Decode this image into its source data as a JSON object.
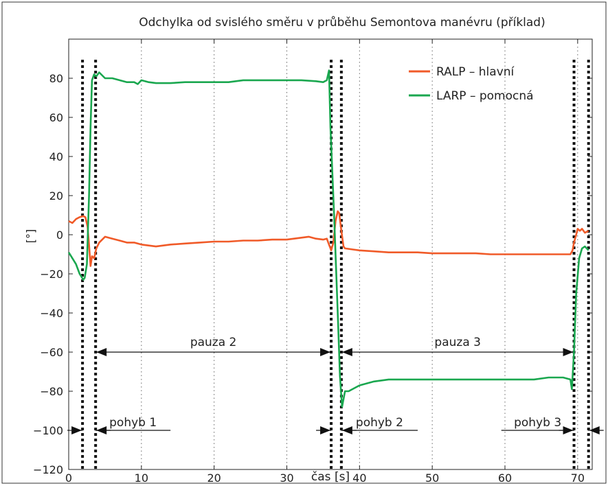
{
  "chart_data": {
    "type": "line",
    "title": "Odchylka od svislého směru v průběhu Semontova manévru (příklad)",
    "xlabel": "čas [s]",
    "ylabel": "[°]",
    "xlim": [
      0,
      72
    ],
    "ylim": [
      -120,
      100
    ],
    "xticks": [
      0,
      10,
      20,
      30,
      40,
      50,
      60,
      70
    ],
    "xtick_labels": [
      "0",
      "10",
      "20",
      "30",
      "40",
      "50",
      "60",
      "70"
    ],
    "yticks": [
      -120,
      -100,
      -80,
      -60,
      -40,
      -20,
      0,
      20,
      40,
      60,
      80
    ],
    "ytick_labels": [
      "−120",
      "−100",
      "−80",
      "−60",
      "−40",
      "−20",
      "0",
      "20",
      "40",
      "60",
      "80"
    ],
    "grid": "vertical dotted",
    "legend_position": "top-right",
    "series": [
      {
        "name": "RALP – hlavní",
        "color": "#f05a28",
        "x": [
          0,
          0.5,
          1,
          1.5,
          2,
          2.3,
          2.6,
          2.8,
          3,
          3.2,
          3.5,
          3.8,
          4.2,
          5,
          6,
          7,
          8,
          9,
          10,
          12,
          14,
          16,
          18,
          20,
          22,
          24,
          26,
          28,
          30,
          32,
          33,
          34,
          35,
          35.5,
          35.8,
          36.1,
          36.4,
          36.7,
          37,
          37.2,
          37.5,
          37.8,
          38,
          39,
          40,
          42,
          44,
          46,
          48,
          50,
          52,
          54,
          56,
          58,
          60,
          62,
          64,
          66,
          68,
          69,
          69.3,
          69.5,
          69.8,
          70,
          70.3,
          70.6,
          71,
          71.5
        ],
        "values": [
          7,
          6,
          8,
          9,
          9.5,
          9,
          4,
          -5,
          -16,
          -11,
          -12,
          -7,
          -4,
          -1,
          -2,
          -3,
          -4,
          -4,
          -5,
          -6,
          -5,
          -4.5,
          -4,
          -3.5,
          -3.5,
          -3,
          -3,
          -2.5,
          -2.5,
          -1.5,
          -1,
          -2,
          -2.5,
          -2,
          -5,
          -8,
          -4,
          7,
          12,
          11,
          2,
          -6,
          -7,
          -7.5,
          -8,
          -8.5,
          -9,
          -9,
          -9,
          -9.5,
          -9.5,
          -9.5,
          -9.5,
          -10,
          -10,
          -10,
          -10,
          -10,
          -10,
          -10,
          -8,
          -4,
          0,
          3,
          2,
          3,
          1,
          2
        ]
      },
      {
        "name": "LARP – pomocná",
        "color": "#1aa74f",
        "x": [
          0,
          0.5,
          1,
          1.5,
          2,
          2.2,
          2.5,
          2.8,
          3,
          3.2,
          3.5,
          3.8,
          4.2,
          5,
          6,
          7,
          8,
          9,
          9.5,
          10,
          11,
          12,
          14,
          16,
          18,
          20,
          22,
          24,
          26,
          28,
          30,
          32,
          34,
          35,
          35.5,
          35.8,
          36,
          36.5,
          37,
          37.3,
          37.6,
          38,
          38.5,
          39,
          40,
          42,
          44,
          46,
          48,
          50,
          52,
          54,
          56,
          58,
          60,
          62,
          64,
          66,
          68,
          69,
          69.2,
          69.5,
          69.8,
          70.2,
          70.6,
          71,
          71.5
        ],
        "values": [
          -9,
          -12,
          -15,
          -20,
          -23,
          -22,
          -15,
          20,
          55,
          79,
          82,
          81,
          83,
          80,
          80,
          79,
          78,
          78,
          77,
          79,
          78,
          77.5,
          77.5,
          78,
          78,
          78,
          78,
          79,
          79,
          79,
          79,
          79,
          78.5,
          78,
          79,
          84,
          55,
          10,
          -40,
          -72,
          -88,
          -80,
          -80,
          -79,
          -77,
          -75,
          -74,
          -74,
          -74,
          -74,
          -74,
          -74,
          -74,
          -74,
          -74,
          -74,
          -74,
          -73,
          -73,
          -74,
          -79,
          -60,
          -30,
          -12,
          -7,
          -6,
          -8
        ]
      }
    ],
    "phase_markers": [
      1.9,
      3.7,
      36.1,
      37.5,
      69.5,
      71.5
    ],
    "annotations": [
      {
        "label": "pauza 2",
        "type": "double-arrow",
        "from": 3.7,
        "to": 36.1,
        "y": -60
      },
      {
        "label": "pauza 3",
        "type": "double-arrow",
        "from": 37.5,
        "to": 69.5,
        "y": -60
      },
      {
        "label": "pohyb 1",
        "type": "inward-arrows",
        "from": 1.9,
        "to": 3.7,
        "y": -100,
        "underline_to": 14
      },
      {
        "label": "pohyb 2",
        "type": "inward-arrows",
        "from": 36.1,
        "to": 37.5,
        "y": -100,
        "underline_to": 48
      },
      {
        "label": "pohyb 3",
        "type": "inward-arrows",
        "from": 69.5,
        "to": 71.5,
        "y": -100,
        "underline_from": 59.5
      }
    ]
  }
}
